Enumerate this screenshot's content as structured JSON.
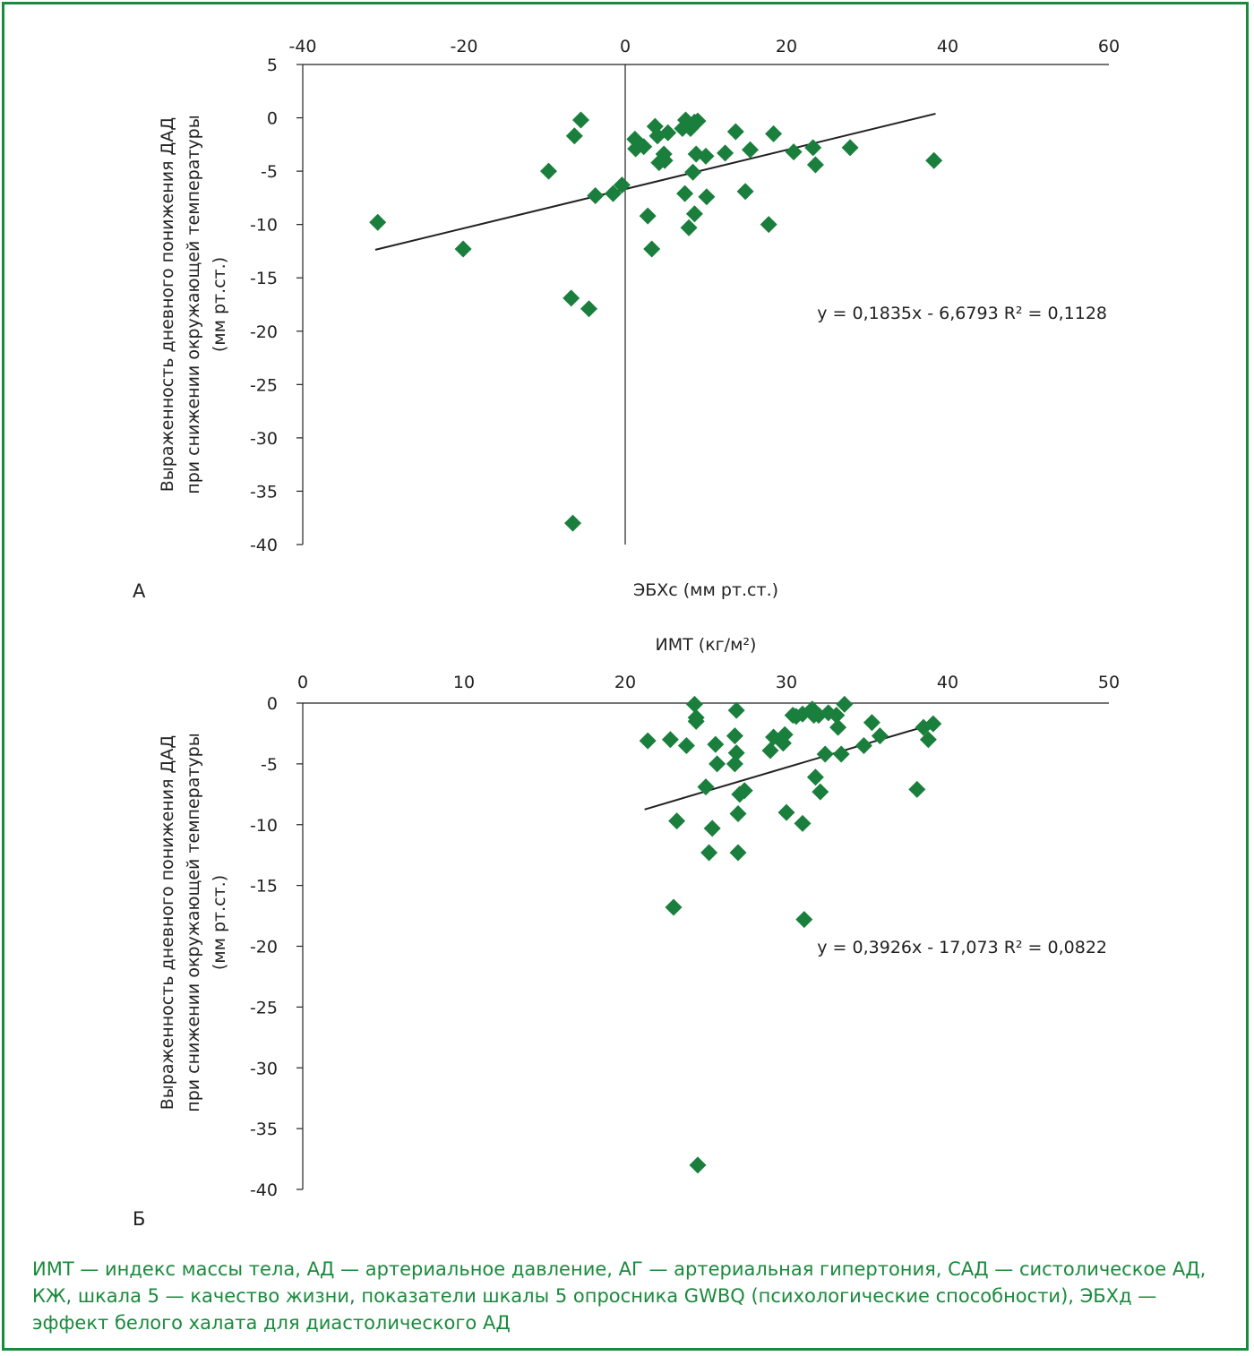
{
  "colors": {
    "frame": "#1a8a3c",
    "marker": "#1a7f3c",
    "caption": "#1a8a3c",
    "axis": "#222222"
  },
  "caption": "ИМТ — индекс массы тела, АД — артериальное давление, АГ — артериальная гипертония, САД — систолическое АД, КЖ, шкала 5 — качество жизни, показатели шкалы 5 опросника GWBQ (психологические способности), ЭБХд — эффект белого халата для диастолического АД",
  "chart_data": [
    {
      "type": "scatter",
      "panel_label": "А",
      "xlabel": "ЭБХс (мм рт.ст.)",
      "ylabel_lines": [
        "Выраженность дневного понижения ДАД",
        "при снижении окружающей температуры",
        "(мм рт.ст.)"
      ],
      "xlim": [
        -40,
        60
      ],
      "ylim": [
        -40,
        5
      ],
      "xticks": [
        -40,
        -20,
        0,
        20,
        40,
        60
      ],
      "yticks": [
        5,
        0,
        -5,
        -10,
        -15,
        -20,
        -25,
        -30,
        -35,
        -40
      ],
      "x_axis_position": "top",
      "marker": "diamond",
      "trendline": {
        "slope": 0.1835,
        "intercept": -6.6793,
        "x_range": [
          -31,
          38.5
        ]
      },
      "equation": "y = 0,1835x - 6,6793 R² = 0,1128",
      "points": [
        [
          -30.7,
          -9.8
        ],
        [
          -20.1,
          -12.3
        ],
        [
          -9.5,
          -5.0
        ],
        [
          -5.5,
          -0.2
        ],
        [
          -6.3,
          -1.7
        ],
        [
          -3.7,
          -7.3
        ],
        [
          -1.5,
          -7.1
        ],
        [
          -0.4,
          -6.3
        ],
        [
          -6.7,
          -16.9
        ],
        [
          -4.5,
          -17.9
        ],
        [
          -6.5,
          -38.0
        ],
        [
          1.2,
          -2.0
        ],
        [
          1.3,
          -2.9
        ],
        [
          2.3,
          -2.7
        ],
        [
          3.7,
          -0.8
        ],
        [
          4.0,
          -1.7
        ],
        [
          4.2,
          -4.2
        ],
        [
          4.8,
          -3.4
        ],
        [
          4.9,
          -4.0
        ],
        [
          5.3,
          -1.4
        ],
        [
          2.8,
          -9.2
        ],
        [
          3.3,
          -12.3
        ],
        [
          7.1,
          -1.0
        ],
        [
          7.5,
          -0.2
        ],
        [
          8.1,
          -1.0
        ],
        [
          8.6,
          -0.4
        ],
        [
          9.0,
          -0.3
        ],
        [
          8.8,
          -3.4
        ],
        [
          8.4,
          -5.1
        ],
        [
          7.4,
          -7.1
        ],
        [
          7.9,
          -10.3
        ],
        [
          8.6,
          -9.0
        ],
        [
          10.0,
          -3.6
        ],
        [
          10.1,
          -7.4
        ],
        [
          12.4,
          -3.3
        ],
        [
          13.7,
          -1.3
        ],
        [
          14.9,
          -6.9
        ],
        [
          15.5,
          -3.0
        ],
        [
          17.8,
          -10.0
        ],
        [
          18.4,
          -1.5
        ],
        [
          20.9,
          -3.2
        ],
        [
          23.3,
          -2.8
        ],
        [
          23.6,
          -4.4
        ],
        [
          27.9,
          -2.8
        ],
        [
          38.3,
          -4.0
        ]
      ]
    },
    {
      "type": "scatter",
      "panel_label": "Б",
      "xlabel": "ИМТ (кг/м²)",
      "ylabel_lines": [
        "Выраженность дневного понижения ДАД",
        "при снижении окружающей температуры",
        "(мм рт.ст.)"
      ],
      "xlim": [
        0,
        50
      ],
      "ylim": [
        -40,
        0
      ],
      "xticks": [
        0,
        10,
        20,
        30,
        40,
        50
      ],
      "yticks": [
        0,
        -5,
        -10,
        -15,
        -20,
        -25,
        -30,
        -35,
        -40
      ],
      "x_axis_position": "top",
      "marker": "diamond",
      "trendline": {
        "slope": 0.3926,
        "intercept": -17.073,
        "x_range": [
          21.2,
          39.1
        ]
      },
      "equation": "y = 0,3926x - 17,073 R² = 0,0822",
      "points": [
        [
          21.4,
          -3.1
        ],
        [
          22.8,
          -3.0
        ],
        [
          23.2,
          -9.7
        ],
        [
          23.8,
          -3.5
        ],
        [
          24.3,
          -0.1
        ],
        [
          24.4,
          -1.2
        ],
        [
          24.4,
          -1.5
        ],
        [
          24.5,
          -38.0
        ],
        [
          25.2,
          -12.3
        ],
        [
          25.4,
          -10.3
        ],
        [
          25.0,
          -6.9
        ],
        [
          25.6,
          -3.4
        ],
        [
          25.7,
          -5.0
        ],
        [
          23.0,
          -16.8
        ],
        [
          26.8,
          -2.7
        ],
        [
          26.9,
          -0.6
        ],
        [
          26.9,
          -4.1
        ],
        [
          26.8,
          -5.0
        ],
        [
          27.0,
          -9.1
        ],
        [
          27.1,
          -7.5
        ],
        [
          27.4,
          -7.2
        ],
        [
          27.0,
          -12.3
        ],
        [
          29.0,
          -3.9
        ],
        [
          29.2,
          -2.8
        ],
        [
          29.8,
          -3.3
        ],
        [
          29.9,
          -2.6
        ],
        [
          30.0,
          -9.0
        ],
        [
          30.4,
          -1.0
        ],
        [
          30.6,
          -1.1
        ],
        [
          31.0,
          -0.9
        ],
        [
          31.0,
          -9.9
        ],
        [
          31.1,
          -17.8
        ],
        [
          31.6,
          -0.5
        ],
        [
          31.7,
          -1.0
        ],
        [
          31.8,
          -6.1
        ],
        [
          32.0,
          -1.0
        ],
        [
          32.1,
          -7.3
        ],
        [
          32.4,
          -4.2
        ],
        [
          32.6,
          -0.8
        ],
        [
          33.1,
          -1.0
        ],
        [
          33.2,
          -2.0
        ],
        [
          33.4,
          -4.2
        ],
        [
          33.6,
          -0.1
        ],
        [
          34.8,
          -3.5
        ],
        [
          35.3,
          -1.6
        ],
        [
          35.8,
          -2.7
        ],
        [
          38.1,
          -7.1
        ],
        [
          38.5,
          -2.0
        ],
        [
          38.8,
          -3.0
        ],
        [
          39.1,
          -1.7
        ]
      ]
    }
  ]
}
